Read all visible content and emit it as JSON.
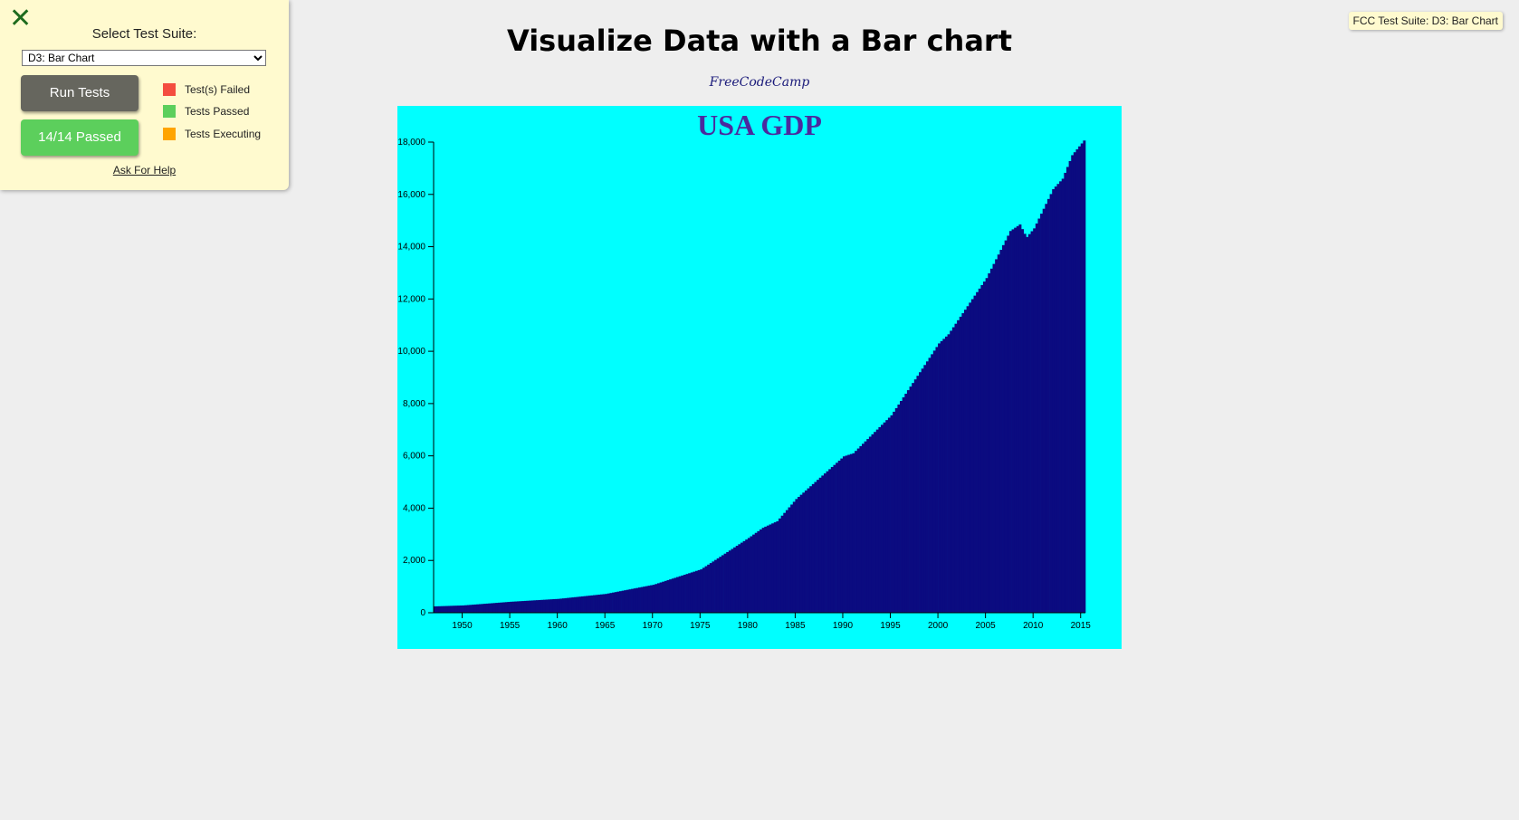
{
  "fcc_panel": {
    "close_icon": "✕",
    "select_label": "Select Test Suite:",
    "selected_suite": "D3: Bar Chart",
    "run_button": "Run Tests",
    "passed_button": "14/14 Passed",
    "legend": [
      {
        "label": "Test(s) Failed",
        "color": "#f44d3f"
      },
      {
        "label": "Tests Passed",
        "color": "#5ccf5c"
      },
      {
        "label": "Tests Executing",
        "color": "#ffa400"
      }
    ],
    "help_link": "Ask For Help"
  },
  "badge": "FCC Test Suite: D3: Bar Chart",
  "page": {
    "title": "Visualize Data with a Bar chart",
    "subtitle": "FreeCodeCamp"
  },
  "chart_data": {
    "type": "bar",
    "title": "USA GDP",
    "xlabel": "",
    "ylabel": "",
    "bar_color": "#0b0b80",
    "background": "#00ffff",
    "x_range": [
      1947,
      2015.5
    ],
    "ylim": [
      0,
      18000
    ],
    "x_ticks": [
      1950,
      1955,
      1960,
      1965,
      1970,
      1975,
      1980,
      1985,
      1990,
      1995,
      2000,
      2005,
      2010,
      2015
    ],
    "y_ticks": [
      0,
      2000,
      4000,
      6000,
      8000,
      10000,
      12000,
      14000,
      16000,
      18000
    ],
    "y_tick_labels": [
      "0",
      "2,000",
      "4,000",
      "6,000",
      "8,000",
      "10,000",
      "12,000",
      "14,000",
      "16,000",
      "18,000"
    ],
    "x": [
      1947,
      1950,
      1955,
      1960,
      1965,
      1970,
      1975,
      1980,
      1981.5,
      1983,
      1985,
      1990,
      1991,
      1995,
      2000,
      2001,
      2005,
      2007.5,
      2008.5,
      2009.2,
      2010,
      2012,
      2013,
      2014,
      2015.25
    ],
    "values": [
      243,
      280,
      420,
      530,
      720,
      1070,
      1660,
      2860,
      3250,
      3500,
      4350,
      5980,
      6100,
      7550,
      10300,
      10650,
      12800,
      14600,
      14850,
      14350,
      14700,
      16200,
      16600,
      17500,
      18060
    ]
  }
}
